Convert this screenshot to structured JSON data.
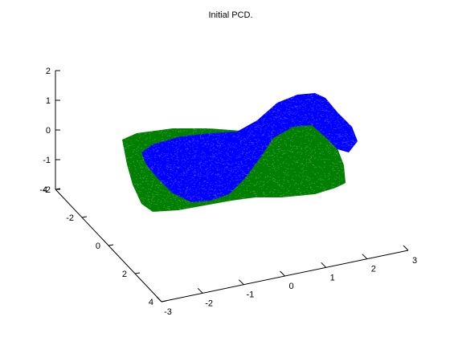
{
  "window": {
    "title": "Initial PCD."
  },
  "colors": {
    "background": "#ffffff",
    "series_green": "#007f00",
    "series_blue": "#0000ff",
    "axis": "#000000"
  },
  "chart_data": {
    "type": "scatter",
    "title": "Initial PCD.",
    "xlabel": "",
    "ylabel": "",
    "zlabel": "",
    "view": "3d",
    "xlim": [
      -3,
      3
    ],
    "ylim": [
      -4,
      4
    ],
    "zlim": [
      -2,
      2
    ],
    "x_ticks": [
      "-3",
      "-2",
      "-1",
      "0",
      "1",
      "2",
      "3"
    ],
    "y_ticks": [
      "-4",
      "-2",
      "0",
      "2",
      "4"
    ],
    "z_ticks": [
      "-2",
      "-1",
      "0",
      "1",
      "2"
    ],
    "grid": false,
    "legend": "none",
    "series": [
      {
        "color": "#007f00",
        "shape": "flat-warped-sheet"
      },
      {
        "color": "#0000ff",
        "shape": "twisted-sheet"
      }
    ]
  }
}
